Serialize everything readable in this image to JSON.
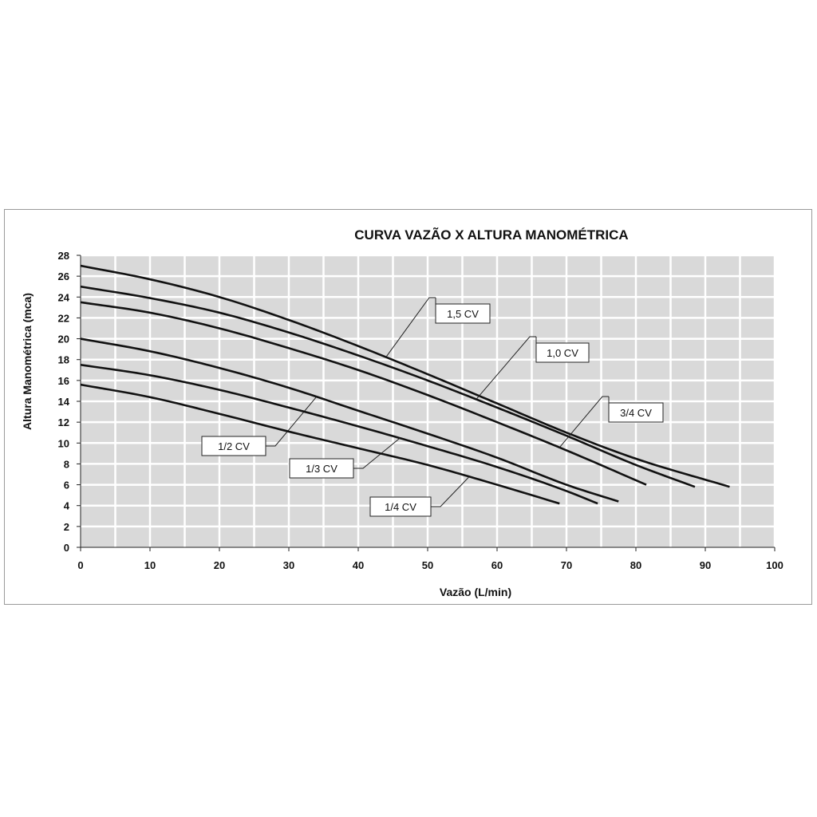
{
  "chart_data": {
    "type": "line",
    "title": "CURVA VAZÃO X ALTURA MANOMÉTRICA",
    "xlabel": "Vazão (L/min)",
    "ylabel": "Altura Manométrica (mca)",
    "xlim": [
      0,
      100
    ],
    "ylim": [
      0,
      28
    ],
    "xticks": [
      0,
      10,
      20,
      30,
      40,
      50,
      60,
      70,
      80,
      90,
      100
    ],
    "yticks": [
      0,
      2,
      4,
      6,
      8,
      10,
      12,
      14,
      16,
      18,
      20,
      22,
      24,
      26,
      28
    ],
    "grid": true,
    "colors": {
      "plot_bg": "#d9d9d9",
      "grid": "#ffffff",
      "line": "#111111"
    },
    "series": [
      {
        "name": "1,5 CV",
        "x": [
          0,
          10,
          20,
          30,
          40,
          50,
          60,
          70,
          80,
          93.5
        ],
        "y": [
          27.0,
          25.7,
          24.0,
          21.8,
          19.3,
          16.6,
          13.8,
          11.0,
          8.5,
          5.8
        ],
        "label_at": 44
      },
      {
        "name": "1,0 CV",
        "x": [
          0,
          10,
          20,
          30,
          40,
          50,
          60,
          70,
          80,
          88.5
        ],
        "y": [
          25.0,
          23.9,
          22.5,
          20.6,
          18.4,
          16.0,
          13.4,
          10.7,
          7.9,
          5.8
        ],
        "label_at": 57
      },
      {
        "name": "3/4 CV",
        "x": [
          0,
          10,
          20,
          30,
          40,
          50,
          60,
          70,
          81.5
        ],
        "y": [
          23.5,
          22.5,
          21.0,
          19.1,
          17.0,
          14.6,
          12.0,
          9.3,
          6.0
        ],
        "label_at": 69
      },
      {
        "name": "1/2 CV",
        "x": [
          0,
          10,
          20,
          30,
          40,
          50,
          60,
          70,
          77.5
        ],
        "y": [
          20.0,
          18.8,
          17.2,
          15.3,
          13.1,
          10.9,
          8.6,
          6.0,
          4.4
        ],
        "label_at": 34
      },
      {
        "name": "1/3 CV",
        "x": [
          0,
          10,
          20,
          30,
          40,
          50,
          60,
          70,
          74.5
        ],
        "y": [
          17.5,
          16.5,
          15.1,
          13.4,
          11.6,
          9.7,
          7.7,
          5.4,
          4.2
        ],
        "label_at": 46
      },
      {
        "name": "1/4 CV",
        "x": [
          0,
          10,
          20,
          30,
          40,
          50,
          60,
          69
        ],
        "y": [
          15.6,
          14.4,
          12.8,
          11.1,
          9.5,
          7.9,
          6.0,
          4.2
        ],
        "label_at": 56
      }
    ]
  }
}
